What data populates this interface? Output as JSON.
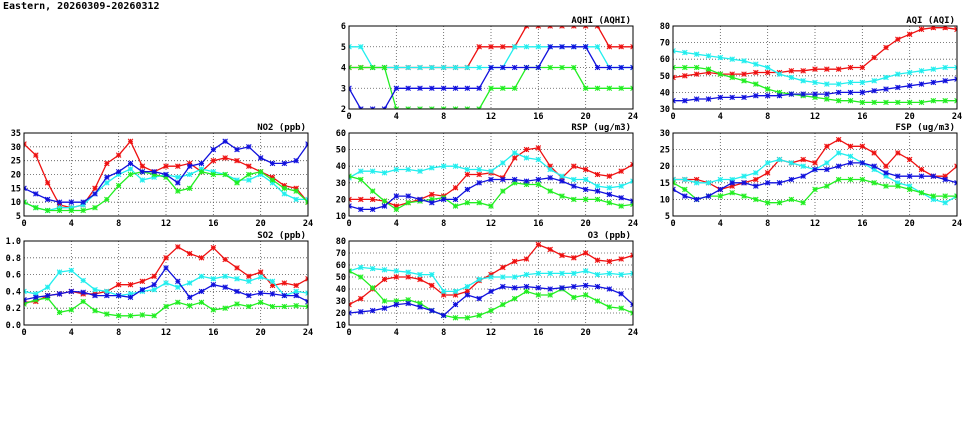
{
  "header": {
    "title": "Eastern, 20260309-20260312"
  },
  "colors": {
    "red": "#ee1111",
    "cyan": "#22eeee",
    "green": "#22ee22",
    "blue": "#1111dd"
  },
  "chart_data": [
    {
      "id": "aqhi",
      "type": "line",
      "title": "AQHI (AQHI)",
      "xlim": [
        0,
        24
      ],
      "ylim": [
        2,
        6
      ],
      "xticks": [
        0,
        4,
        8,
        12,
        16,
        20,
        24
      ],
      "yticks": [
        2,
        3,
        4,
        5,
        6
      ],
      "grid": true,
      "x": [
        0,
        1,
        2,
        3,
        4,
        5,
        6,
        7,
        8,
        9,
        10,
        11,
        12,
        13,
        14,
        15,
        16,
        17,
        18,
        19,
        20,
        21,
        22,
        23,
        24
      ],
      "series": [
        {
          "color": "red",
          "values": [
            4,
            4,
            4,
            4,
            4,
            4,
            4,
            4,
            4,
            4,
            4,
            5,
            5,
            5,
            5,
            6,
            6,
            6,
            6,
            6,
            6,
            6,
            5,
            5,
            5
          ]
        },
        {
          "color": "cyan",
          "values": [
            5,
            5,
            4,
            4,
            4,
            4,
            4,
            4,
            4,
            4,
            4,
            4,
            4,
            4,
            5,
            5,
            5,
            5,
            5,
            5,
            5,
            5,
            4,
            4,
            4
          ]
        },
        {
          "color": "green",
          "values": [
            4,
            4,
            4,
            4,
            2,
            2,
            2,
            2,
            2,
            2,
            2,
            2,
            3,
            3,
            3,
            4,
            4,
            4,
            4,
            4,
            3,
            3,
            3,
            3,
            3
          ]
        },
        {
          "color": "blue",
          "values": [
            3,
            2,
            2,
            2,
            3,
            3,
            3,
            3,
            3,
            3,
            3,
            3,
            4,
            4,
            4,
            4,
            4,
            5,
            5,
            5,
            5,
            4,
            4,
            4,
            4
          ]
        }
      ]
    },
    {
      "id": "aqi",
      "type": "line",
      "title": "AQI (AQI)",
      "xlim": [
        0,
        24
      ],
      "ylim": [
        30,
        80
      ],
      "xticks": [
        0,
        4,
        8,
        12,
        16,
        20,
        24
      ],
      "yticks": [
        30,
        40,
        50,
        60,
        70,
        80
      ],
      "grid": true,
      "x": [
        0,
        1,
        2,
        3,
        4,
        5,
        6,
        7,
        8,
        9,
        10,
        11,
        12,
        13,
        14,
        15,
        16,
        17,
        18,
        19,
        20,
        21,
        22,
        23,
        24
      ],
      "series": [
        {
          "color": "red",
          "values": [
            49,
            50,
            51,
            52,
            51,
            51,
            51,
            52,
            52,
            52,
            53,
            53,
            54,
            54,
            54,
            55,
            55,
            61,
            67,
            72,
            75,
            78,
            79,
            79,
            78
          ]
        },
        {
          "color": "cyan",
          "values": [
            65,
            64,
            63,
            62,
            61,
            60,
            59,
            57,
            55,
            51,
            49,
            47,
            46,
            45,
            45,
            46,
            46,
            47,
            49,
            51,
            52,
            53,
            54,
            55,
            55
          ]
        },
        {
          "color": "green",
          "values": [
            55,
            55,
            55,
            54,
            51,
            49,
            47,
            45,
            42,
            40,
            39,
            38,
            37,
            36,
            35,
            35,
            34,
            34,
            34,
            34,
            34,
            34,
            35,
            35,
            35
          ]
        },
        {
          "color": "blue",
          "values": [
            35,
            35,
            36,
            36,
            37,
            37,
            37,
            38,
            38,
            38,
            39,
            39,
            39,
            39,
            40,
            40,
            40,
            41,
            42,
            43,
            44,
            45,
            46,
            47,
            48
          ]
        }
      ]
    },
    {
      "id": "no2",
      "type": "line",
      "title": "NO2 (ppb)",
      "xlim": [
        0,
        24
      ],
      "ylim": [
        5,
        35
      ],
      "xticks": [
        0,
        4,
        8,
        12,
        16,
        20,
        24
      ],
      "yticks": [
        5,
        10,
        15,
        20,
        25,
        30,
        35
      ],
      "grid": true,
      "x": [
        0,
        1,
        2,
        3,
        4,
        5,
        6,
        7,
        8,
        9,
        10,
        11,
        12,
        13,
        14,
        15,
        16,
        17,
        18,
        19,
        20,
        21,
        22,
        23,
        24
      ],
      "series": [
        {
          "color": "red",
          "values": [
            31,
            27,
            17,
            9,
            8,
            9,
            15,
            24,
            27,
            32,
            23,
            21,
            23,
            23,
            24,
            21,
            25,
            26,
            25,
            23,
            21,
            19,
            16,
            15,
            10
          ]
        },
        {
          "color": "cyan",
          "values": [
            10,
            8,
            7,
            8,
            8,
            9,
            13,
            17,
            20,
            22,
            18,
            19,
            20,
            19,
            20,
            22,
            21,
            20,
            18,
            18,
            20,
            17,
            13,
            11,
            11
          ]
        },
        {
          "color": "green",
          "values": [
            10,
            8,
            7,
            7,
            7,
            7,
            8,
            11,
            16,
            20,
            21,
            20,
            19,
            14,
            15,
            21,
            20,
            20,
            17,
            20,
            21,
            18,
            15,
            14,
            10
          ]
        },
        {
          "color": "blue",
          "values": [
            15,
            13,
            11,
            10,
            10,
            10,
            13,
            19,
            21,
            24,
            21,
            21,
            20,
            17,
            23,
            24,
            29,
            32,
            29,
            30,
            26,
            24,
            24,
            25,
            31
          ]
        }
      ]
    },
    {
      "id": "rsp",
      "type": "line",
      "title": "RSP (ug/m3)",
      "xlim": [
        0,
        24
      ],
      "ylim": [
        10,
        60
      ],
      "xticks": [
        0,
        4,
        8,
        12,
        16,
        20,
        24
      ],
      "yticks": [
        10,
        20,
        30,
        40,
        50,
        60
      ],
      "grid": true,
      "x": [
        0,
        1,
        2,
        3,
        4,
        5,
        6,
        7,
        8,
        9,
        10,
        11,
        12,
        13,
        14,
        15,
        16,
        17,
        18,
        19,
        20,
        21,
        22,
        23,
        24
      ],
      "series": [
        {
          "color": "red",
          "values": [
            20,
            20,
            20,
            19,
            16,
            18,
            20,
            23,
            22,
            27,
            35,
            35,
            36,
            33,
            45,
            50,
            51,
            40,
            33,
            40,
            38,
            35,
            34,
            37,
            41
          ]
        },
        {
          "color": "cyan",
          "values": [
            33,
            37,
            37,
            36,
            38,
            38,
            37,
            39,
            40,
            40,
            38,
            38,
            37,
            42,
            48,
            45,
            44,
            38,
            34,
            32,
            32,
            28,
            27,
            28,
            31
          ]
        },
        {
          "color": "green",
          "values": [
            34,
            32,
            25,
            19,
            14,
            18,
            19,
            20,
            21,
            16,
            18,
            18,
            16,
            25,
            30,
            29,
            29,
            25,
            22,
            20,
            20,
            20,
            18,
            16,
            17
          ]
        },
        {
          "color": "blue",
          "values": [
            16,
            14,
            14,
            16,
            22,
            22,
            20,
            18,
            20,
            20,
            26,
            30,
            32,
            32,
            32,
            31,
            32,
            33,
            31,
            28,
            26,
            25,
            23,
            21,
            19
          ]
        }
      ]
    },
    {
      "id": "fsp",
      "type": "line",
      "title": "FSP (ug/m3)",
      "xlim": [
        0,
        24
      ],
      "ylim": [
        5,
        30
      ],
      "xticks": [
        0,
        4,
        8,
        12,
        16,
        20,
        24
      ],
      "yticks": [
        5,
        10,
        15,
        20,
        25,
        30
      ],
      "grid": true,
      "x": [
        0,
        1,
        2,
        3,
        4,
        5,
        6,
        7,
        8,
        9,
        10,
        11,
        12,
        13,
        14,
        15,
        16,
        17,
        18,
        19,
        20,
        21,
        22,
        23,
        24
      ],
      "series": [
        {
          "color": "red",
          "values": [
            16,
            16,
            16,
            15,
            13,
            14,
            15,
            16,
            18,
            22,
            21,
            22,
            21,
            26,
            28,
            26,
            26,
            24,
            20,
            24,
            22,
            19,
            17,
            17,
            20
          ]
        },
        {
          "color": "cyan",
          "values": [
            16,
            16,
            15,
            15,
            16,
            16,
            17,
            18,
            21,
            22,
            21,
            20,
            19,
            21,
            24,
            23,
            21,
            19,
            17,
            15,
            14,
            12,
            10,
            9,
            11
          ]
        },
        {
          "color": "green",
          "values": [
            15,
            13,
            10,
            11,
            11,
            12,
            11,
            10,
            9,
            9,
            10,
            9,
            13,
            14,
            16,
            16,
            16,
            15,
            14,
            14,
            13,
            12,
            11,
            11,
            11
          ]
        },
        {
          "color": "blue",
          "values": [
            13,
            11,
            10,
            11,
            13,
            15,
            15,
            14,
            15,
            15,
            16,
            17,
            19,
            19,
            20,
            21,
            21,
            20,
            18,
            17,
            17,
            17,
            17,
            16,
            15
          ]
        }
      ]
    },
    {
      "id": "so2",
      "type": "line",
      "title": "SO2 (ppb)",
      "xlim": [
        0,
        24
      ],
      "ylim": [
        0.0,
        1.0
      ],
      "xticks": [
        0,
        4,
        8,
        12,
        16,
        20,
        24
      ],
      "yticks": [
        0.0,
        0.2,
        0.4,
        0.6,
        0.8,
        1.0
      ],
      "ytick_labels": [
        "0.0",
        "0.2",
        "0.4",
        "0.6",
        "0.8",
        "1.0"
      ],
      "grid": true,
      "x": [
        0,
        1,
        2,
        3,
        4,
        5,
        6,
        7,
        8,
        9,
        10,
        11,
        12,
        13,
        14,
        15,
        16,
        17,
        18,
        19,
        20,
        21,
        22,
        23,
        24
      ],
      "series": [
        {
          "color": "red",
          "values": [
            0.27,
            0.28,
            0.35,
            0.37,
            0.4,
            0.37,
            0.37,
            0.4,
            0.48,
            0.48,
            0.52,
            0.58,
            0.8,
            0.93,
            0.85,
            0.8,
            0.92,
            0.78,
            0.68,
            0.58,
            0.63,
            0.47,
            0.5,
            0.47,
            0.55
          ]
        },
        {
          "color": "cyan",
          "values": [
            0.4,
            0.37,
            0.45,
            0.63,
            0.65,
            0.53,
            0.42,
            0.4,
            0.35,
            0.37,
            0.4,
            0.42,
            0.5,
            0.45,
            0.5,
            0.58,
            0.55,
            0.58,
            0.55,
            0.52,
            0.57,
            0.52,
            0.35,
            0.4,
            0.38
          ]
        },
        {
          "color": "green",
          "values": [
            0.25,
            0.3,
            0.32,
            0.15,
            0.18,
            0.28,
            0.17,
            0.13,
            0.11,
            0.11,
            0.12,
            0.11,
            0.22,
            0.27,
            0.23,
            0.27,
            0.18,
            0.2,
            0.25,
            0.22,
            0.27,
            0.22,
            0.22,
            0.23,
            0.22
          ]
        },
        {
          "color": "blue",
          "values": [
            0.3,
            0.33,
            0.35,
            0.37,
            0.4,
            0.39,
            0.35,
            0.35,
            0.35,
            0.33,
            0.42,
            0.48,
            0.68,
            0.52,
            0.33,
            0.4,
            0.48,
            0.45,
            0.4,
            0.35,
            0.38,
            0.37,
            0.35,
            0.35,
            0.28
          ]
        }
      ]
    },
    {
      "id": "o3",
      "type": "line",
      "title": "O3 (ppb)",
      "xlim": [
        0,
        24
      ],
      "ylim": [
        10,
        80
      ],
      "xticks": [
        0,
        4,
        8,
        12,
        16,
        20,
        24
      ],
      "yticks": [
        10,
        20,
        30,
        40,
        50,
        60,
        70,
        80
      ],
      "grid": true,
      "x": [
        0,
        1,
        2,
        3,
        4,
        5,
        6,
        7,
        8,
        9,
        10,
        11,
        12,
        13,
        14,
        15,
        16,
        17,
        18,
        19,
        20,
        21,
        22,
        23,
        24
      ],
      "series": [
        {
          "color": "red",
          "values": [
            27,
            32,
            40,
            48,
            50,
            50,
            48,
            43,
            35,
            35,
            38,
            47,
            52,
            58,
            63,
            65,
            77,
            73,
            68,
            66,
            70,
            64,
            63,
            65,
            68
          ]
        },
        {
          "color": "cyan",
          "values": [
            55,
            58,
            57,
            56,
            55,
            54,
            52,
            52,
            38,
            38,
            42,
            48,
            50,
            50,
            50,
            52,
            53,
            53,
            53,
            53,
            55,
            52,
            53,
            52,
            53
          ]
        },
        {
          "color": "green",
          "values": [
            55,
            50,
            41,
            30,
            30,
            31,
            28,
            22,
            18,
            16,
            16,
            18,
            22,
            27,
            32,
            38,
            35,
            35,
            40,
            33,
            35,
            30,
            25,
            24,
            20
          ]
        },
        {
          "color": "blue",
          "values": [
            20,
            21,
            22,
            24,
            27,
            28,
            25,
            22,
            18,
            27,
            35,
            32,
            38,
            42,
            41,
            42,
            41,
            40,
            41,
            42,
            43,
            42,
            40,
            36,
            27
          ]
        }
      ]
    }
  ]
}
